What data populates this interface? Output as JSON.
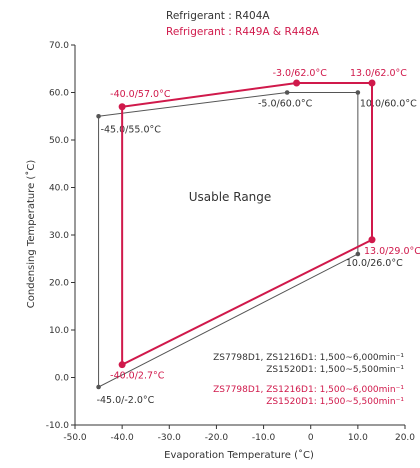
{
  "chart_data": {
    "type": "line",
    "title": "",
    "xlabel": "Evaporation Temperature (˚C)",
    "ylabel": "Condensing Temperature (˚C)",
    "xlim": [
      -50,
      20
    ],
    "ylim": [
      -10,
      70
    ],
    "x_ticks": [
      -50,
      -40,
      -30,
      -20,
      -10,
      0,
      10,
      20
    ],
    "x_tick_labels": [
      "-50.0",
      "-40.0",
      "-30.0",
      "-20.0",
      "-10.0",
      "0",
      "10.0",
      "20.0"
    ],
    "y_ticks": [
      -10,
      0,
      10,
      20,
      30,
      40,
      50,
      60,
      70
    ],
    "y_tick_labels": [
      "-10.0",
      "0.0",
      "10.0",
      "20.0",
      "30.0",
      "40.0",
      "50.0",
      "60.0",
      "70.0"
    ],
    "grid": false,
    "legend_position": "top-center",
    "region_label": "Usable Range",
    "series": [
      {
        "name": "Refrigerant : R404A",
        "color": "#555555",
        "closed": true,
        "points": [
          {
            "x": -45,
            "y": 55,
            "label": "-45.0/55.0°C"
          },
          {
            "x": -5,
            "y": 60,
            "label": "-5.0/60.0°C"
          },
          {
            "x": 10,
            "y": 60,
            "label": "10.0/60.0°C"
          },
          {
            "x": 10,
            "y": 26,
            "label": "10.0/26.0°C"
          },
          {
            "x": -45,
            "y": -2,
            "label": "-45.0/-2.0°C"
          }
        ]
      },
      {
        "name": "Refrigerant : R449A & R448A",
        "color": "#d0194b",
        "closed": true,
        "points": [
          {
            "x": -40,
            "y": 57,
            "label": "-40.0/57.0°C"
          },
          {
            "x": -3,
            "y": 62,
            "label": "-3.0/62.0°C"
          },
          {
            "x": 13,
            "y": 62,
            "label": "13.0/62.0°C"
          },
          {
            "x": 13,
            "y": 29,
            "label": "13.0/29.0°C"
          },
          {
            "x": -40,
            "y": 2.7,
            "label": "-40.0/2.7°C"
          }
        ]
      }
    ],
    "notes": [
      {
        "color": "#333333",
        "lines": [
          "ZS7798D1, ZS1216D1: 1,500~6,000min⁻¹",
          "ZS1520D1: 1,500~5,500min⁻¹"
        ]
      },
      {
        "color": "#d0194b",
        "lines": [
          "ZS7798D1, ZS1216D1: 1,500~6,000min⁻¹",
          "ZS1520D1: 1,500~5,500min⁻¹"
        ]
      }
    ]
  }
}
